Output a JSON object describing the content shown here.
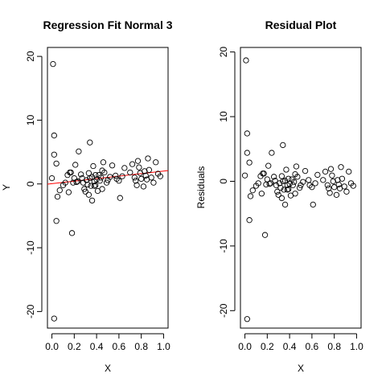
{
  "chart_data": [
    {
      "type": "scatter",
      "title": "Regression Fit Normal 3",
      "xlabel": "X",
      "ylabel": "Y",
      "xlim": [
        -0.04,
        1.04
      ],
      "ylim": [
        -22.6,
        21.4
      ],
      "xticks": [
        0.0,
        0.2,
        0.4,
        0.6,
        0.8,
        1.0
      ],
      "xtick_labels": [
        "0.0",
        "0.2",
        "0.4",
        "0.6",
        "0.8",
        "1.0"
      ],
      "yticks": [
        -20,
        -10,
        0,
        10,
        20
      ],
      "ytick_labels": [
        "-20",
        "-10",
        "0",
        "10",
        "20"
      ],
      "grid": false,
      "fit_line": {
        "x": [
          -0.04,
          1.04
        ],
        "y": [
          -0.03,
          2.1
        ],
        "color": "#ff0000"
      },
      "points": {
        "x": [
          0.0,
          0.01,
          0.02,
          0.02,
          0.02,
          0.04,
          0.04,
          0.05,
          0.07,
          0.1,
          0.12,
          0.14,
          0.15,
          0.17,
          0.18,
          0.2,
          0.21,
          0.22,
          0.23,
          0.24,
          0.26,
          0.27,
          0.28,
          0.29,
          0.3,
          0.31,
          0.32,
          0.33,
          0.33,
          0.34,
          0.35,
          0.36,
          0.36,
          0.37,
          0.38,
          0.38,
          0.39,
          0.4,
          0.41,
          0.42,
          0.43,
          0.44,
          0.45,
          0.46,
          0.47,
          0.49,
          0.5,
          0.52,
          0.54,
          0.58,
          0.6,
          0.61,
          0.63,
          0.65,
          0.7,
          0.72,
          0.74,
          0.75,
          0.76,
          0.77,
          0.78,
          0.79,
          0.8,
          0.82,
          0.83,
          0.84,
          0.85,
          0.86,
          0.87,
          0.89,
          0.91,
          0.93,
          0.95,
          0.97,
          0.16,
          0.19,
          0.34,
          0.39,
          0.45,
          0.57
        ],
        "y": [
          0.9,
          18.8,
          7.6,
          4.6,
          -21.1,
          -5.8,
          3.2,
          -2.0,
          -1.0,
          -0.2,
          0.2,
          1.4,
          -1.3,
          1.8,
          -7.7,
          0.9,
          3.0,
          0.3,
          0.4,
          5.1,
          1.5,
          0.9,
          0.2,
          -0.8,
          -1.2,
          0.6,
          -0.1,
          1.7,
          -1.7,
          6.5,
          -0.3,
          1.1,
          -2.6,
          2.8,
          0.4,
          -0.3,
          1.4,
          0.7,
          -1.1,
          1.4,
          0.5,
          1.0,
          -0.8,
          3.4,
          1.8,
          0.2,
          0.6,
          1.1,
          2.9,
          0.8,
          0.5,
          -2.2,
          1.2,
          2.5,
          1.8,
          3.1,
          1.0,
          0.5,
          -0.2,
          3.6,
          2.6,
          1.7,
          0.8,
          -0.4,
          2.0,
          1.3,
          0.7,
          4.0,
          2.2,
          1.0,
          0.2,
          3.4,
          1.6,
          1.2,
          1.8,
          0.2,
          0.9,
          -0.2,
          2.1,
          1.3
        ]
      }
    },
    {
      "type": "scatter",
      "title": "Residual Plot",
      "xlabel": "X",
      "ylabel": "Residuals",
      "xlim": [
        -0.04,
        1.04
      ],
      "ylim": [
        -22.7,
        20.7
      ],
      "xticks": [
        0.0,
        0.2,
        0.4,
        0.6,
        0.8,
        1.0
      ],
      "xtick_labels": [
        "0.0",
        "0.2",
        "0.4",
        "0.6",
        "0.8",
        "1.0"
      ],
      "yticks": [
        -20,
        -10,
        0,
        10,
        20
      ],
      "ytick_labels": [
        "-20",
        "-10",
        "0",
        "10",
        "20"
      ],
      "grid": false,
      "points": {
        "x": [
          0.0,
          0.01,
          0.02,
          0.02,
          0.02,
          0.04,
          0.04,
          0.05,
          0.07,
          0.1,
          0.12,
          0.14,
          0.15,
          0.17,
          0.18,
          0.2,
          0.21,
          0.22,
          0.23,
          0.24,
          0.26,
          0.27,
          0.28,
          0.29,
          0.3,
          0.31,
          0.32,
          0.33,
          0.33,
          0.34,
          0.35,
          0.36,
          0.36,
          0.37,
          0.38,
          0.38,
          0.39,
          0.4,
          0.41,
          0.42,
          0.43,
          0.44,
          0.45,
          0.46,
          0.47,
          0.49,
          0.5,
          0.52,
          0.54,
          0.58,
          0.6,
          0.61,
          0.63,
          0.65,
          0.7,
          0.72,
          0.74,
          0.75,
          0.76,
          0.77,
          0.78,
          0.79,
          0.8,
          0.82,
          0.83,
          0.84,
          0.85,
          0.86,
          0.87,
          0.89,
          0.91,
          0.93,
          0.95,
          0.97,
          0.16,
          0.19,
          0.34,
          0.39,
          0.45,
          0.57
        ],
        "y": [
          0.9,
          18.7,
          7.4,
          4.4,
          -21.3,
          -6.0,
          2.9,
          -2.3,
          -1.4,
          -0.7,
          -0.3,
          0.8,
          -1.9,
          1.2,
          -8.3,
          0.3,
          2.4,
          -0.4,
          -0.3,
          4.4,
          0.7,
          0.1,
          -0.6,
          -1.6,
          -2.1,
          -0.3,
          -1.0,
          0.8,
          -2.6,
          5.6,
          -1.3,
          0.1,
          -3.6,
          1.8,
          -0.6,
          -1.3,
          0.4,
          -0.4,
          -2.2,
          0.3,
          -0.6,
          -0.1,
          -1.9,
          2.3,
          0.7,
          -1.0,
          -0.6,
          -0.1,
          1.6,
          -0.6,
          -0.9,
          -3.6,
          -0.3,
          1.0,
          0.2,
          1.5,
          -0.6,
          -1.1,
          -1.8,
          1.9,
          0.9,
          0.0,
          -0.9,
          -2.1,
          0.2,
          -0.5,
          -1.1,
          2.2,
          0.4,
          -0.8,
          -1.6,
          1.5,
          -0.3,
          -0.7,
          1.2,
          -0.5,
          0.0,
          -1.2,
          1.1,
          0.2
        ]
      }
    }
  ]
}
